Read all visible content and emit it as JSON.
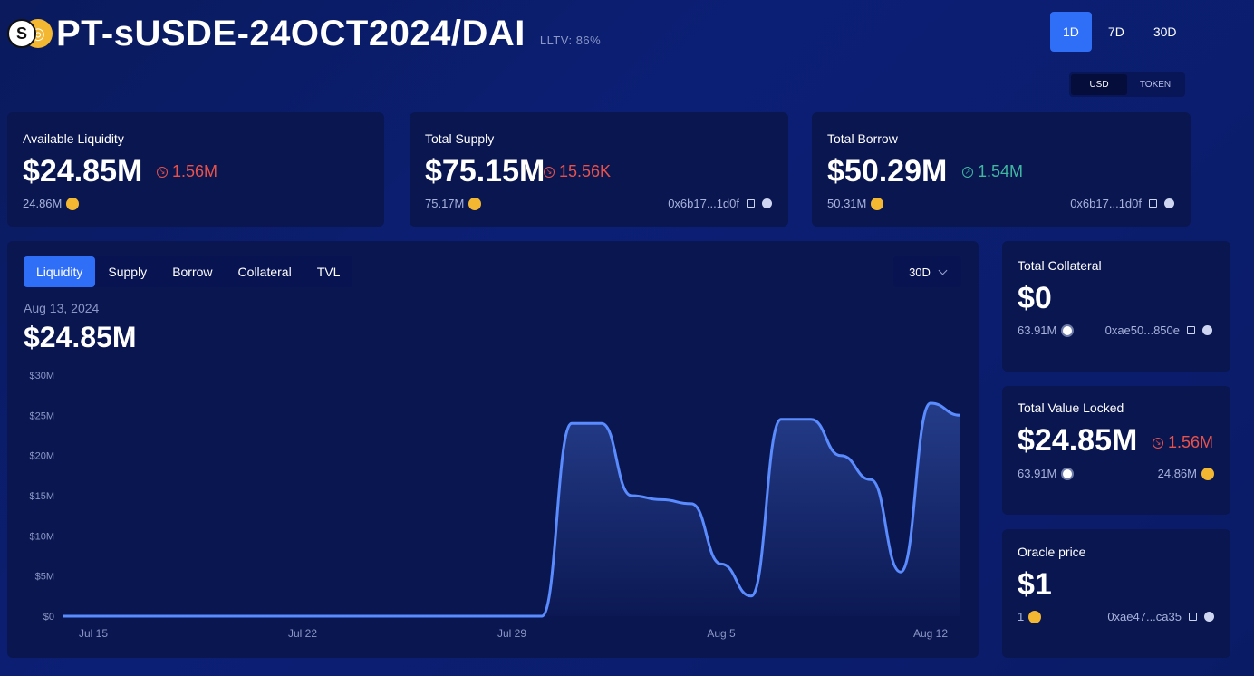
{
  "header": {
    "title": "PT-sUSDE-24OCT2024/DAI",
    "lltv": "LLTV: 86%",
    "coin_a_glyph": "S",
    "coin_b_glyph": "◎"
  },
  "range_toggle": [
    "1D",
    "7D",
    "30D"
  ],
  "unit_toggle": [
    "USD",
    "TOKEN"
  ],
  "available_liquidity": {
    "label": "Available Liquidity",
    "value": "$24.85M",
    "change": "1.56M",
    "change_direction": "down",
    "sub_value": "24.86M"
  },
  "total_supply": {
    "label": "Total Supply",
    "value": "$75.15M",
    "change": "15.56K",
    "change_direction": "down",
    "sub_value": "75.17M",
    "address": "0x6b17...1d0f"
  },
  "total_borrow": {
    "label": "Total Borrow",
    "value": "$50.29M",
    "change": "1.54M",
    "change_direction": "up",
    "sub_value": "50.31M",
    "address": "0x6b17...1d0f"
  },
  "total_collateral": {
    "label": "Total Collateral",
    "value": "$0",
    "sub_value": "63.91M",
    "address": "0xae50...850e"
  },
  "total_value_locked": {
    "label": "Total Value Locked",
    "value": "$24.85M",
    "change": "1.56M",
    "change_direction": "down",
    "sub_value_a": "63.91M",
    "sub_value_b": "24.86M"
  },
  "oracle_price": {
    "label": "Oracle price",
    "value": "$1",
    "sub_value": "1",
    "address": "0xae47...ca35"
  },
  "chart_panel": {
    "tabs": [
      "Liquidity",
      "Supply",
      "Borrow",
      "Collateral",
      "TVL"
    ],
    "active_tab": "Liquidity",
    "period": "30D",
    "date": "Aug 13, 2024",
    "value": "$24.85M"
  },
  "colors": {
    "accent": "#2f6ef6",
    "line": "#5b8cff",
    "down": "#e8524b",
    "up": "#3fb8a0"
  },
  "chart_data": {
    "type": "area",
    "y_tick_labels": [
      "$0",
      "$5M",
      "$10M",
      "$15M",
      "$20M",
      "$25M",
      "$30M"
    ],
    "y_ticks": [
      0,
      5,
      10,
      15,
      20,
      25,
      30
    ],
    "ylim": [
      0,
      30
    ],
    "x_tick_labels": [
      "Jul 15",
      "Jul 22",
      "Jul 29",
      "Aug 5",
      "Aug 12"
    ],
    "x_ticks": [
      "2024-07-15",
      "2024-07-22",
      "2024-07-29",
      "2024-08-05",
      "2024-08-12"
    ],
    "xlim": [
      "2024-07-14",
      "2024-08-13"
    ],
    "y_unit": "$M",
    "grid": false,
    "series": [
      {
        "x": [
          "2024-07-14",
          "2024-07-20",
          "2024-07-25",
          "2024-07-30",
          "2024-07-31",
          "2024-08-01",
          "2024-08-02",
          "2024-08-03",
          "2024-08-04",
          "2024-08-05",
          "2024-08-06",
          "2024-08-07",
          "2024-08-08",
          "2024-08-09",
          "2024-08-10",
          "2024-08-11",
          "2024-08-12",
          "2024-08-13"
        ],
        "values": [
          0,
          0,
          0,
          0,
          24,
          24,
          15,
          14.5,
          14,
          6.5,
          2.5,
          24.5,
          24.5,
          20,
          17,
          5.5,
          26.5,
          25
        ]
      }
    ]
  }
}
